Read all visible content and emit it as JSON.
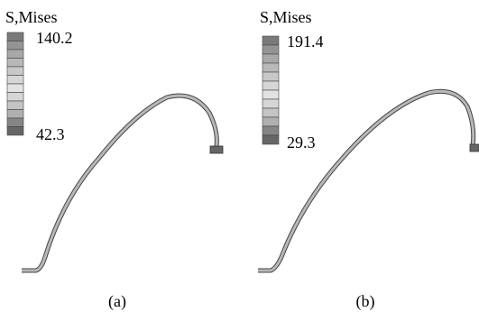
{
  "panels": [
    {
      "legend_title": "S,Mises",
      "max_label": "140.2",
      "min_label": "42.3",
      "caption": "(a)"
    },
    {
      "legend_title": "S,Mises",
      "max_label": "191.4",
      "min_label": "29.3",
      "caption": "(b)"
    }
  ]
}
